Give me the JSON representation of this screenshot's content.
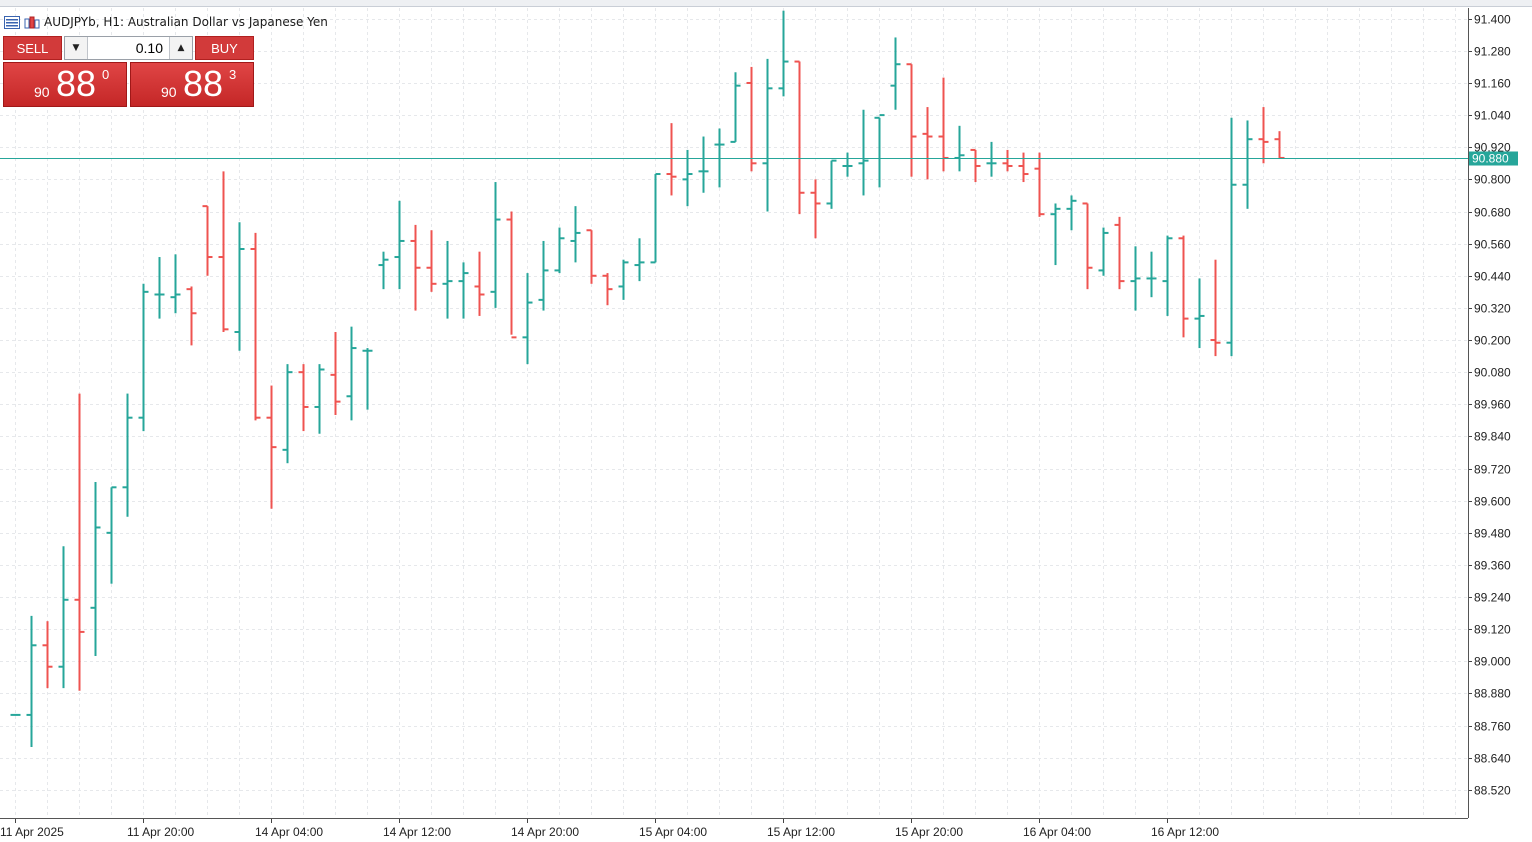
{
  "window": {
    "title": "AUDJPYb, H1:  Australian Dollar vs Japanese Yen",
    "icons": [
      "chart-list-icon",
      "bar-chart-icon"
    ]
  },
  "trade_panel": {
    "sell_label": "SELL",
    "buy_label": "BUY",
    "lot_value": "0.10",
    "sell_price": {
      "small": "90",
      "big": "88",
      "sup": "0"
    },
    "buy_price": {
      "small": "90",
      "big": "88",
      "sup": "3"
    },
    "colors": {
      "button": "#d23a3a",
      "price": "#d23a3a"
    }
  },
  "current_price_label": "90.880",
  "colors": {
    "bull": "#26a69a",
    "bear": "#ef5350",
    "grid": "#e6e8eb",
    "axis_text": "#222222",
    "price_line": "#26a69a"
  },
  "chart_data": {
    "type": "ohlc",
    "symbol": "AUDJPYb",
    "timeframe": "H1",
    "y_ticks": [
      "91.400",
      "91.280",
      "91.160",
      "91.040",
      "90.920",
      "90.800",
      "90.680",
      "90.560",
      "90.440",
      "90.320",
      "90.200",
      "90.080",
      "89.960",
      "89.840",
      "89.720",
      "89.600",
      "89.480",
      "89.360",
      "89.240",
      "89.120",
      "89.000",
      "88.880",
      "88.760",
      "88.640",
      "88.520"
    ],
    "ylim": [
      88.415,
      91.44
    ],
    "x_labels": [
      {
        "index": 0,
        "text": "11 Apr 2025"
      },
      {
        "index": 8,
        "text": "11 Apr 20:00"
      },
      {
        "index": 16,
        "text": "14 Apr 04:00"
      },
      {
        "index": 24,
        "text": "14 Apr 12:00"
      },
      {
        "index": 32,
        "text": "14 Apr 20:00"
      },
      {
        "index": 40,
        "text": "15 Apr 04:00"
      },
      {
        "index": 48,
        "text": "15 Apr 12:00"
      },
      {
        "index": 56,
        "text": "15 Apr 20:00"
      },
      {
        "index": 64,
        "text": "16 Apr 04:00"
      },
      {
        "index": 72,
        "text": "16 Apr 12:00"
      }
    ],
    "current_price": 90.88,
    "bars": [
      [
        88.8,
        88.8,
        88.8,
        88.8
      ],
      [
        88.8,
        89.17,
        88.68,
        89.06
      ],
      [
        89.06,
        89.15,
        88.9,
        88.98
      ],
      [
        88.98,
        89.43,
        88.9,
        89.23
      ],
      [
        89.23,
        90.0,
        88.89,
        89.11
      ],
      [
        89.2,
        89.67,
        89.02,
        89.5
      ],
      [
        89.48,
        89.65,
        89.29,
        89.65
      ],
      [
        89.65,
        90.0,
        89.54,
        89.91
      ],
      [
        89.91,
        90.41,
        89.86,
        90.38
      ],
      [
        90.37,
        90.51,
        90.28,
        90.37
      ],
      [
        90.36,
        90.52,
        90.3,
        90.37
      ],
      [
        90.39,
        90.4,
        90.18,
        90.3
      ],
      [
        90.7,
        90.7,
        90.44,
        90.51
      ],
      [
        90.51,
        90.83,
        90.23,
        90.24
      ],
      [
        90.23,
        90.64,
        90.16,
        90.54
      ],
      [
        90.54,
        90.6,
        89.9,
        89.91
      ],
      [
        89.91,
        90.03,
        89.57,
        89.8
      ],
      [
        89.79,
        90.11,
        89.74,
        90.08
      ],
      [
        90.08,
        90.11,
        89.86,
        89.95
      ],
      [
        89.95,
        90.11,
        89.85,
        90.09
      ],
      [
        90.07,
        90.23,
        89.92,
        89.97
      ],
      [
        89.99,
        90.25,
        89.9,
        90.17
      ],
      [
        90.16,
        90.17,
        89.94,
        90.16
      ],
      [
        90.48,
        90.53,
        90.39,
        90.5
      ],
      [
        90.51,
        90.72,
        90.39,
        90.57
      ],
      [
        90.57,
        90.63,
        90.31,
        90.47
      ],
      [
        90.47,
        90.61,
        90.38,
        90.41
      ],
      [
        90.41,
        90.57,
        90.28,
        90.42
      ],
      [
        90.42,
        90.49,
        90.28,
        90.45
      ],
      [
        90.4,
        90.53,
        90.29,
        90.37
      ],
      [
        90.38,
        90.79,
        90.32,
        90.65
      ],
      [
        90.65,
        90.68,
        90.22,
        90.21
      ],
      [
        90.21,
        90.45,
        90.11,
        90.34
      ],
      [
        90.35,
        90.57,
        90.31,
        90.46
      ],
      [
        90.46,
        90.62,
        90.45,
        90.58
      ],
      [
        90.57,
        90.7,
        90.49,
        90.6
      ],
      [
        90.61,
        90.61,
        90.41,
        90.44
      ],
      [
        90.44,
        90.45,
        90.33,
        90.39
      ],
      [
        90.4,
        90.5,
        90.35,
        90.49
      ],
      [
        90.48,
        90.58,
        90.42,
        90.49
      ],
      [
        90.49,
        90.82,
        90.49,
        90.82
      ],
      [
        90.82,
        91.01,
        90.74,
        90.81
      ],
      [
        90.8,
        90.91,
        90.7,
        90.82
      ],
      [
        90.83,
        90.96,
        90.75,
        90.83
      ],
      [
        90.93,
        90.99,
        90.77,
        90.93
      ],
      [
        90.94,
        91.2,
        90.94,
        91.15
      ],
      [
        91.16,
        91.22,
        90.83,
        90.86
      ],
      [
        90.86,
        91.25,
        90.68,
        91.14
      ],
      [
        91.14,
        91.43,
        91.11,
        91.24
      ],
      [
        91.24,
        91.24,
        90.67,
        90.75
      ],
      [
        90.75,
        90.8,
        90.58,
        90.71
      ],
      [
        90.71,
        90.87,
        90.69,
        90.87
      ],
      [
        90.85,
        90.9,
        90.81,
        90.85
      ],
      [
        90.86,
        91.06,
        90.74,
        90.87
      ],
      [
        91.03,
        91.03,
        90.77,
        91.04
      ],
      [
        91.15,
        91.33,
        91.06,
        91.23
      ],
      [
        91.23,
        91.23,
        90.81,
        90.96
      ],
      [
        90.97,
        91.07,
        90.8,
        90.96
      ],
      [
        90.96,
        91.18,
        90.83,
        90.88
      ],
      [
        90.88,
        91.0,
        90.83,
        90.89
      ],
      [
        90.91,
        90.91,
        90.79,
        90.85
      ],
      [
        90.86,
        90.94,
        90.81,
        90.86
      ],
      [
        90.86,
        90.91,
        90.83,
        90.85
      ],
      [
        90.85,
        90.9,
        90.79,
        90.82
      ],
      [
        90.84,
        90.9,
        90.66,
        90.67
      ],
      [
        90.67,
        90.71,
        90.48,
        90.69
      ],
      [
        90.69,
        90.74,
        90.61,
        90.72
      ],
      [
        90.71,
        90.71,
        90.39,
        90.47
      ],
      [
        90.46,
        90.62,
        90.44,
        90.6
      ],
      [
        90.63,
        90.66,
        90.39,
        90.42
      ],
      [
        90.42,
        90.55,
        90.31,
        90.43
      ],
      [
        90.43,
        90.53,
        90.36,
        90.43
      ],
      [
        90.42,
        90.59,
        90.29,
        90.58
      ],
      [
        90.58,
        90.59,
        90.21,
        90.28
      ],
      [
        90.28,
        90.43,
        90.17,
        90.29
      ],
      [
        90.2,
        90.5,
        90.14,
        90.19
      ],
      [
        90.19,
        91.03,
        90.14,
        90.78
      ],
      [
        90.78,
        91.02,
        90.69,
        90.95
      ],
      [
        90.95,
        91.07,
        90.86,
        90.94
      ],
      [
        90.95,
        90.98,
        90.88,
        90.88
      ]
    ]
  }
}
